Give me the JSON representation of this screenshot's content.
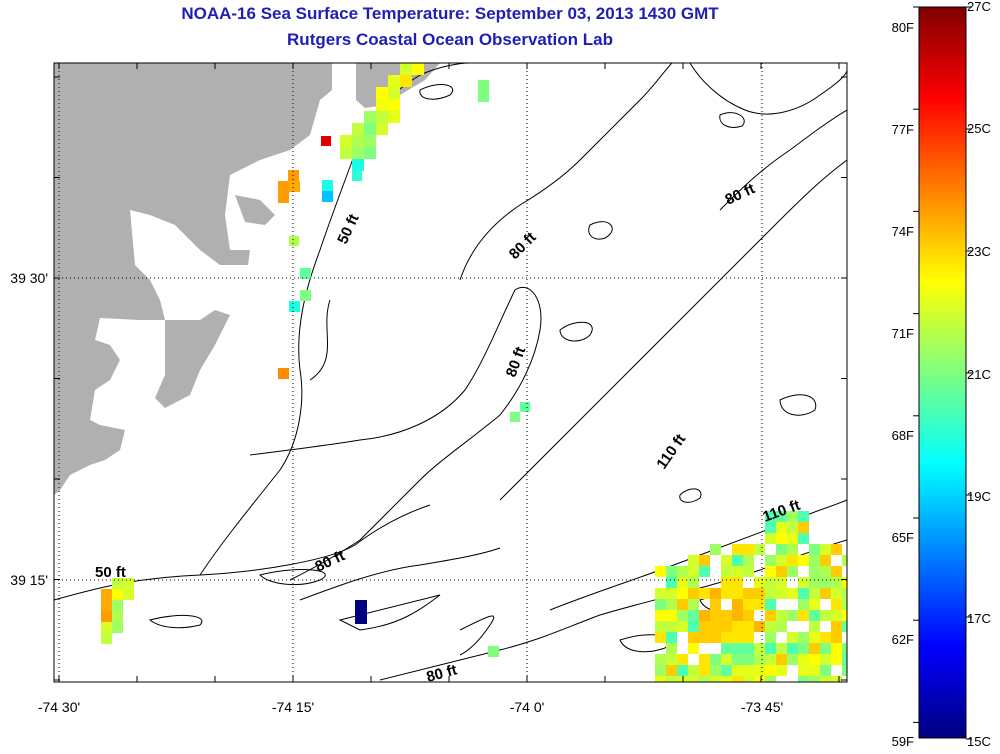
{
  "title": {
    "line1": "NOAA-16 Sea Surface Temperature:  September 03, 2013 1430 GMT",
    "line2": "Rutgers Coastal Ocean Observation Lab"
  },
  "axes": {
    "x_ticks": [
      "-74 30'",
      "-74 15'",
      "-74 0'",
      "-73 45'"
    ],
    "y_ticks": [
      "39 30'",
      "39 15'"
    ]
  },
  "contour_labels": [
    "50 ft",
    "50 ft",
    "80 ft",
    "80 ft",
    "80 ft",
    "80 ft",
    "80 ft",
    "110 ft",
    "110 ft"
  ],
  "colorbar": {
    "fahrenheit": [
      "80F",
      "77F",
      "74F",
      "71F",
      "68F",
      "65F",
      "62F",
      "59F"
    ],
    "celsius": [
      "27C",
      "25C",
      "23C",
      "21C",
      "19C",
      "17C",
      "15C"
    ]
  },
  "colors": {
    "title": "#1f1fb4",
    "land": "#b0b0b0",
    "ocean": "#ffffff"
  }
}
